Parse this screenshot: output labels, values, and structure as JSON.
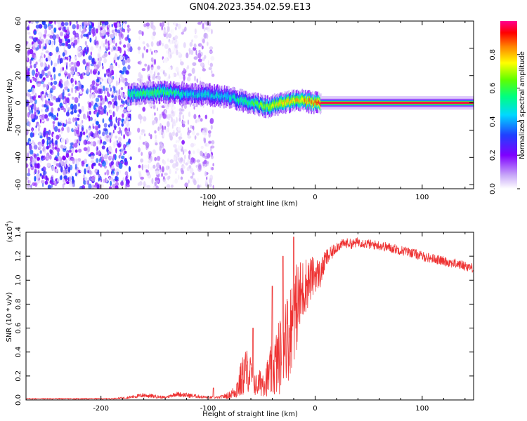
{
  "chart_data": [
    {
      "type": "heatmap",
      "title": "GN04.2023.354.02.59.E13",
      "xlabel": "Height of straight line (km)",
      "ylabel": "Frequency (Hz)",
      "xlim": [
        -270,
        148
      ],
      "ylim": [
        -63,
        60
      ],
      "xticks": [
        -200,
        -100,
        0,
        100
      ],
      "yticks": [
        -60,
        -40,
        -20,
        0,
        20,
        40,
        60
      ],
      "colorbar": {
        "label": "Normalized spectral amplitude",
        "range": [
          0,
          1
        ],
        "ticks": [
          "0.0",
          "0.2",
          "0.4",
          "0.6",
          "0.8"
        ],
        "colormap": [
          "#ffffff",
          "#c8a8f8",
          "#7f00ff",
          "#2040ff",
          "#00d8ff",
          "#00ff80",
          "#60ff00",
          "#ffff00",
          "#ff8000",
          "#ff0000",
          "#ff0090"
        ]
      },
      "regions": [
        {
          "kind": "noise",
          "x_from": -270,
          "x_to": -172,
          "freq_from": -63,
          "freq_to": 60,
          "amplitude": 0.15
        },
        {
          "kind": "noise",
          "x_from": -165,
          "x_to": -95,
          "freq_from": -63,
          "freq_to": 60,
          "amplitude": 0.08
        },
        {
          "kind": "ridge",
          "x": [
            -175,
            -160,
            -140,
            -120,
            -100,
            -80,
            -60,
            -45,
            -30,
            -15,
            0,
            5
          ],
          "freq": [
            6,
            7,
            8,
            6,
            6,
            4,
            0,
            -3,
            0,
            2,
            0,
            0
          ],
          "amplitude": [
            0.45,
            0.5,
            0.5,
            0.4,
            0.4,
            0.4,
            0.5,
            0.6,
            0.7,
            0.7,
            0.8,
            0.9
          ]
        },
        {
          "kind": "line",
          "x_from": 5,
          "x_to": 148,
          "freq": 0,
          "amplitude": 0.95
        }
      ]
    },
    {
      "type": "line",
      "xlabel": "Height of straight line (km)",
      "ylabel": "SNR (10 * v/v)",
      "y_scale_label": "(x10",
      "y_scale_exponent": "4",
      "xlim": [
        -270,
        148
      ],
      "ylim": [
        0,
        1.4
      ],
      "xticks": [
        -200,
        -100,
        0,
        100
      ],
      "yticks": [
        0.0,
        0.2,
        0.4,
        0.6,
        0.8,
        1.0,
        1.2,
        1.4
      ],
      "color": "#ee3333",
      "series": [
        {
          "x": [
            -270,
            -250,
            -230,
            -210,
            -190,
            -175,
            -160,
            -150,
            -140,
            -130,
            -120,
            -110,
            -100,
            -90,
            -80,
            -75,
            -70,
            -65,
            -60,
            -55,
            -50,
            -45,
            -40,
            -35,
            -30,
            -28,
            -25,
            -22,
            -20,
            -15,
            -10,
            -5,
            0,
            5,
            10,
            15,
            20,
            25,
            30,
            35,
            40,
            50,
            60,
            70,
            80,
            90,
            100,
            110,
            120,
            130,
            140,
            148
          ],
          "values": [
            0.01,
            0.01,
            0.01,
            0.01,
            0.01,
            0.02,
            0.04,
            0.03,
            0.02,
            0.05,
            0.04,
            0.03,
            0.02,
            0.02,
            0.04,
            0.07,
            0.15,
            0.25,
            0.22,
            0.12,
            0.15,
            0.18,
            0.25,
            0.32,
            0.45,
            0.6,
            0.5,
            0.65,
            0.72,
            0.82,
            0.95,
            1.0,
            1.05,
            1.05,
            1.18,
            1.22,
            1.28,
            1.3,
            1.31,
            1.3,
            1.32,
            1.3,
            1.29,
            1.27,
            1.25,
            1.23,
            1.2,
            1.18,
            1.16,
            1.14,
            1.12,
            1.1
          ],
          "noise": [
            0.005,
            0.005,
            0.005,
            0.005,
            0.005,
            0.01,
            0.02,
            0.015,
            0.01,
            0.02,
            0.02,
            0.015,
            0.01,
            0.01,
            0.03,
            0.06,
            0.15,
            0.2,
            0.15,
            0.1,
            0.12,
            0.15,
            0.25,
            0.3,
            0.35,
            0.4,
            0.35,
            0.4,
            0.4,
            0.35,
            0.25,
            0.2,
            0.15,
            0.12,
            0.08,
            0.06,
            0.05,
            0.04,
            0.04,
            0.04,
            0.04,
            0.04,
            0.04,
            0.04,
            0.04,
            0.04,
            0.04,
            0.04,
            0.04,
            0.04,
            0.04,
            0.04
          ],
          "spikes": [
            [
              -20,
              1.36
            ],
            [
              -30,
              1.2
            ],
            [
              -40,
              0.95
            ],
            [
              -58,
              0.6
            ],
            [
              -95,
              0.1
            ]
          ]
        }
      ]
    }
  ]
}
